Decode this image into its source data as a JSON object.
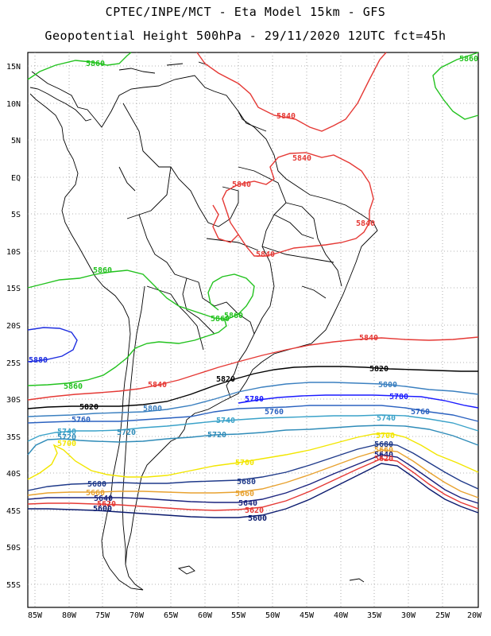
{
  "header": {
    "title_line1": "CPTEC/INPE/MCT -  Eta Model 15km - GFS",
    "title_line2": "Geopotential Height 500hPa - 29/11/2020 12UTC fct=45h"
  },
  "axes": {
    "lat_labels": [
      "15N",
      "10N",
      "5N",
      "EQ",
      "5S",
      "10S",
      "15S",
      "20S",
      "25S",
      "30S",
      "35S",
      "40S",
      "45S",
      "50S",
      "55S"
    ],
    "lon_labels": [
      "85W",
      "80W",
      "75W",
      "70W",
      "65W",
      "60W",
      "55W",
      "50W",
      "45W",
      "40W",
      "35W",
      "30W",
      "25W",
      "20W"
    ]
  },
  "colors": {
    "c5600": "#0a1a6e",
    "c5620": "#e53935",
    "c5640": "#1a237e",
    "c5660": "#e8a230",
    "c5680": "#1f3a8a",
    "c5700": "#f2e600",
    "c5720": "#2e8bb8",
    "c5740": "#3aa2c9",
    "c5760": "#2b62c0",
    "c5780": "#1a1aff",
    "c5800": "#3b80c0",
    "c5820": "#000000",
    "c5840": "#e53935",
    "c5860": "#22c21e",
    "c5880": "#1e2ee0"
  },
  "contour_labels": [
    {
      "text": "5860",
      "color": "#22c21e"
    },
    {
      "text": "5860",
      "color": "#22c21e"
    },
    {
      "text": "5840",
      "color": "#e53935"
    },
    {
      "text": "5840",
      "color": "#e53935"
    },
    {
      "text": "5840",
      "color": "#e53935"
    },
    {
      "text": "5840",
      "color": "#e53935"
    },
    {
      "text": "5840",
      "color": "#e53935"
    },
    {
      "text": "5860",
      "color": "#22c21e"
    },
    {
      "text": "5860",
      "color": "#22c21e"
    },
    {
      "text": "5860",
      "color": "#22c21e"
    },
    {
      "text": "5840",
      "color": "#e53935"
    },
    {
      "text": "5880",
      "color": "#1e2ee0"
    },
    {
      "text": "5860",
      "color": "#22c21e"
    },
    {
      "text": "5840",
      "color": "#e53935"
    },
    {
      "text": "5820",
      "color": "#000000"
    },
    {
      "text": "5820",
      "color": "#000000"
    },
    {
      "text": "5800",
      "color": "#3b80c0"
    },
    {
      "text": "5780",
      "color": "#1a1aff"
    },
    {
      "text": "5780",
      "color": "#1a1aff"
    },
    {
      "text": "5820",
      "color": "#000000"
    },
    {
      "text": "5800",
      "color": "#3b80c0"
    },
    {
      "text": "5760",
      "color": "#2b62c0"
    },
    {
      "text": "5760",
      "color": "#2b62c0"
    },
    {
      "text": "5740",
      "color": "#3aa2c9"
    },
    {
      "text": "5740",
      "color": "#3aa2c9"
    },
    {
      "text": "5760",
      "color": "#2b62c0"
    },
    {
      "text": "5720",
      "color": "#2e8bb8"
    },
    {
      "text": "5740",
      "color": "#3aa2c9"
    },
    {
      "text": "5720",
      "color": "#2e8bb8"
    },
    {
      "text": "5700",
      "color": "#f2e600"
    },
    {
      "text": "5720",
      "color": "#2e8bb8"
    },
    {
      "text": "5700",
      "color": "#f2e600"
    },
    {
      "text": "5700",
      "color": "#f2e600"
    },
    {
      "text": "5680",
      "color": "#1f3a8a"
    },
    {
      "text": "5680",
      "color": "#1f3a8a"
    },
    {
      "text": "5660",
      "color": "#e8a230"
    },
    {
      "text": "5660",
      "color": "#e8a230"
    },
    {
      "text": "5640",
      "color": "#1a237e"
    },
    {
      "text": "5640",
      "color": "#1a237e"
    },
    {
      "text": "5620",
      "color": "#e53935"
    },
    {
      "text": "5620",
      "color": "#e53935"
    },
    {
      "text": "5600",
      "color": "#0a1a6e"
    },
    {
      "text": "5600",
      "color": "#0a1a6e"
    },
    {
      "text": "5680",
      "color": "#1f3a8a"
    },
    {
      "text": "5660",
      "color": "#e8a230"
    },
    {
      "text": "5640",
      "color": "#1a237e"
    },
    {
      "text": "5620",
      "color": "#e53935"
    }
  ]
}
